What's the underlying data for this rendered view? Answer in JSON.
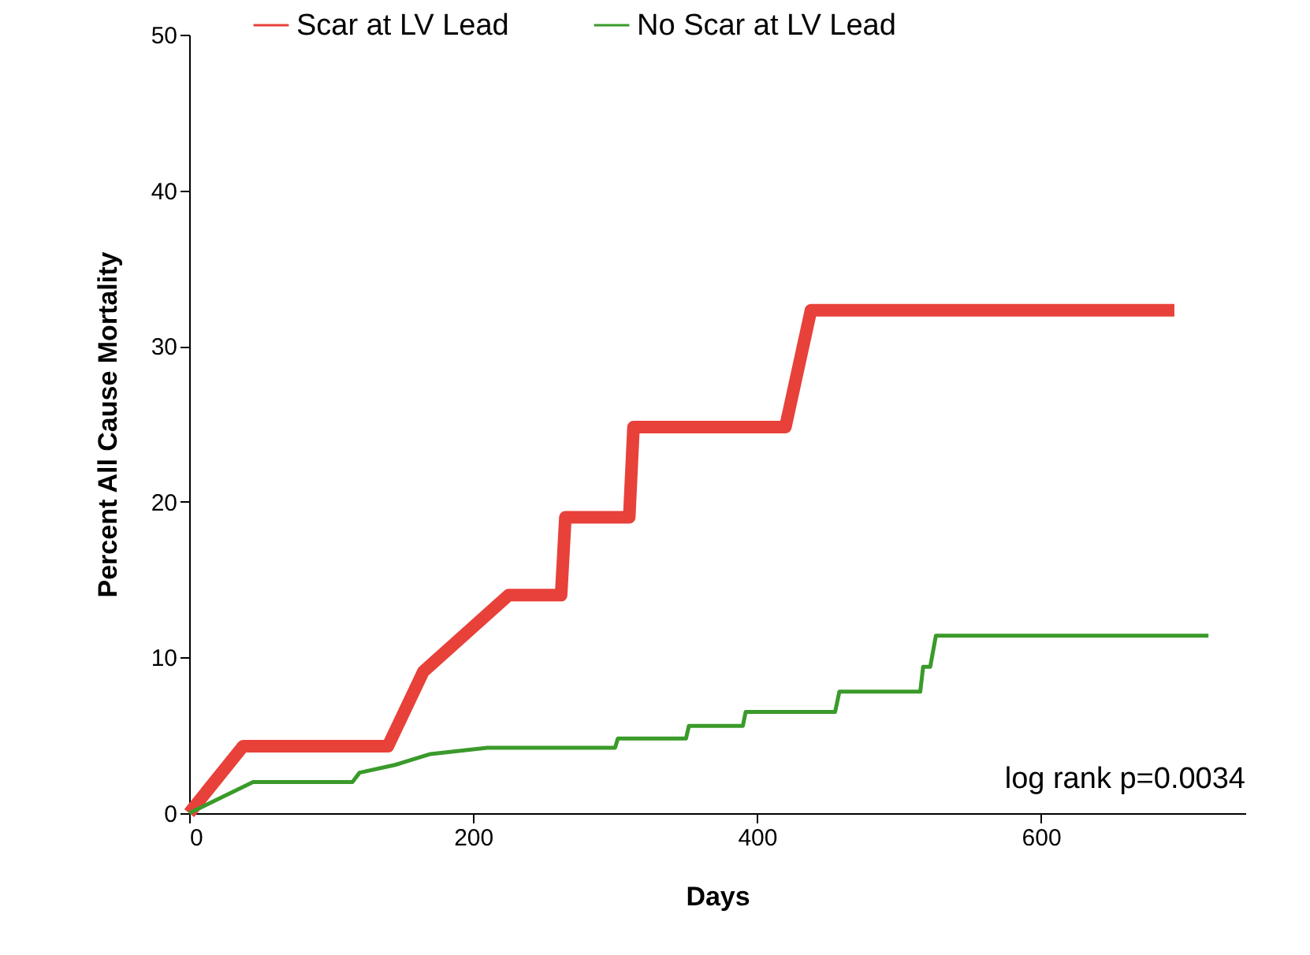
{
  "chart_data": {
    "type": "line",
    "xlabel": "Days",
    "ylabel": "Percent All Cause Mortality",
    "xlim": [
      0,
      744
    ],
    "ylim": [
      0,
      50
    ],
    "xticks": [
      0,
      200,
      400,
      600
    ],
    "yticks": [
      0,
      10,
      20,
      30,
      40,
      50
    ],
    "grid": false,
    "legend": "top",
    "marker": "none",
    "line_style": "solid",
    "annotations": [
      "log rank p=0.0034"
    ],
    "series": [
      {
        "name": "Scar at LV Lead",
        "color": "#e8413a",
        "x": [
          0,
          38,
          140,
          165,
          225,
          262,
          265,
          310,
          313,
          420,
          438,
          694
        ],
        "values": [
          0,
          4.3,
          4.3,
          9.1,
          14,
          14,
          19,
          19,
          24.8,
          24.8,
          32.3,
          32.3
        ]
      },
      {
        "name": "No Scar at LV Lead",
        "color": "#3a9a2a",
        "x": [
          0,
          45,
          115,
          120,
          145,
          170,
          210,
          300,
          302,
          350,
          352,
          390,
          392,
          455,
          458,
          515,
          517,
          522,
          526,
          718
        ],
        "values": [
          0,
          2,
          2,
          2.6,
          3.1,
          3.8,
          4.2,
          4.2,
          4.8,
          4.8,
          5.6,
          5.6,
          6.5,
          6.5,
          7.8,
          7.8,
          9.4,
          9.4,
          11.4,
          11.4
        ]
      }
    ]
  }
}
